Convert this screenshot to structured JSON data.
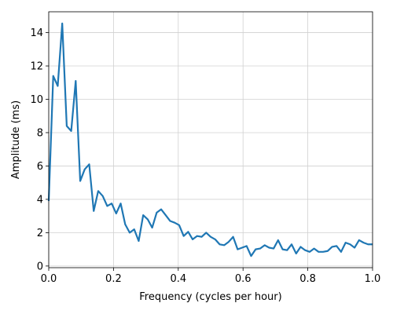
{
  "chart_data": {
    "type": "line",
    "xlabel": "Frequency (cycles per hour)",
    "ylabel": "Amplitude (ms)",
    "x": [
      0,
      0.0139,
      0.0278,
      0.0417,
      0.0556,
      0.0694,
      0.0833,
      0.0972,
      0.1111,
      0.125,
      0.1389,
      0.1528,
      0.1667,
      0.1806,
      0.1944,
      0.2083,
      0.2222,
      0.2361,
      0.25,
      0.2639,
      0.2778,
      0.2917,
      0.3056,
      0.3194,
      0.3333,
      0.3472,
      0.3611,
      0.375,
      0.3889,
      0.4028,
      0.4167,
      0.4306,
      0.4444,
      0.4583,
      0.4722,
      0.4861,
      0.5,
      0.5139,
      0.5278,
      0.5417,
      0.5556,
      0.5694,
      0.5833,
      0.5972,
      0.6111,
      0.625,
      0.6389,
      0.6528,
      0.6667,
      0.6806,
      0.6944,
      0.7083,
      0.7222,
      0.7361,
      0.75,
      0.7639,
      0.7778,
      0.7917,
      0.8056,
      0.8194,
      0.8333,
      0.8472,
      0.8611,
      0.875,
      0.8889,
      0.9028,
      0.9167,
      0.9306,
      0.9444,
      0.9583,
      0.9722,
      0.9861,
      1
    ],
    "values": [
      3.9,
      11.4,
      10.8,
      14.55,
      8.4,
      8.1,
      11.1,
      5.1,
      5.8,
      6.1,
      3.3,
      4.5,
      4.2,
      3.6,
      3.75,
      3.15,
      3.75,
      2.5,
      2.0,
      2.2,
      1.5,
      3.05,
      2.8,
      2.3,
      3.2,
      3.4,
      3.05,
      2.7,
      2.6,
      2.45,
      1.8,
      2.05,
      1.6,
      1.8,
      1.75,
      2.0,
      1.75,
      1.6,
      1.3,
      1.25,
      1.45,
      1.75,
      1.0,
      1.1,
      1.2,
      0.6,
      1.0,
      1.05,
      1.25,
      1.1,
      1.05,
      1.55,
      1.0,
      0.95,
      1.3,
      0.75,
      1.15,
      0.95,
      0.85,
      1.05,
      0.85,
      0.85,
      0.9,
      1.15,
      1.2,
      0.85,
      1.4,
      1.3,
      1.1,
      1.55,
      1.4,
      1.3,
      1.3
    ],
    "color": "#1f77b4",
    "xlim": [
      0,
      1
    ],
    "xticks": [
      {
        "value": 0,
        "label": "0.0"
      },
      {
        "value": 0.2,
        "label": "0.2"
      },
      {
        "value": 0.4,
        "label": "0.4"
      },
      {
        "value": 0.6,
        "label": "0.6"
      },
      {
        "value": 0.8,
        "label": "0.8"
      },
      {
        "value": 1,
        "label": "1.0"
      }
    ],
    "ylim": [
      -0.1,
      15.25
    ],
    "yticks": [
      0,
      2,
      4,
      6,
      8,
      10,
      12,
      14
    ],
    "grid": true
  }
}
